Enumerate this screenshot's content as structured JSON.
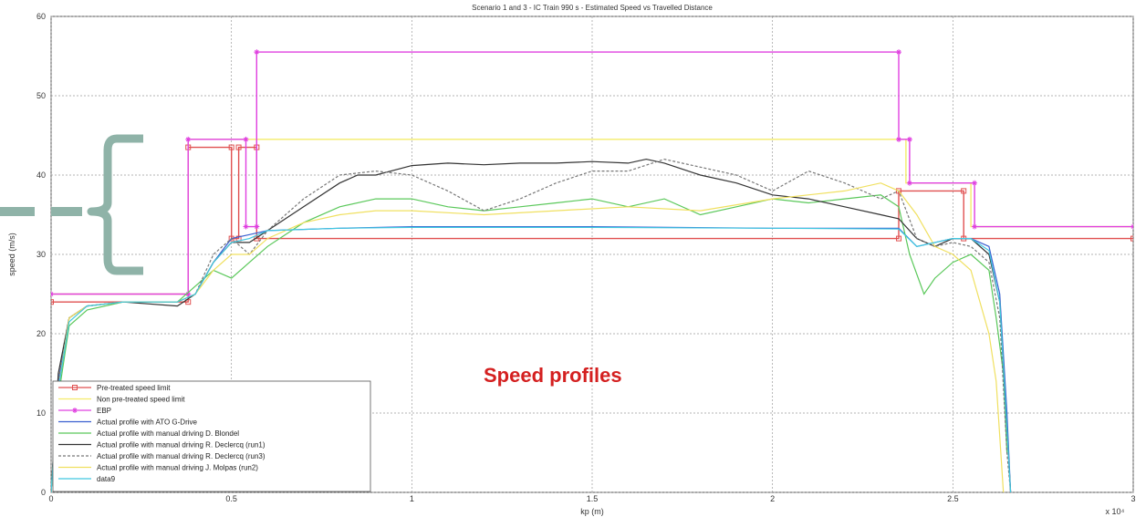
{
  "chart_data": {
    "type": "line",
    "title": "Scenario 1 and 3 - IC Train 990 s - Estimated Speed vs Travelled Distance",
    "xlabel": "kp (m)",
    "ylabel": "speed (m/s)",
    "x_exponent_label": "x 10⁴",
    "xlim": [
      0,
      3
    ],
    "ylim": [
      0,
      60
    ],
    "x_ticks": [
      "0",
      "0.5",
      "1",
      "1.5",
      "2",
      "2.5",
      "3"
    ],
    "y_ticks": [
      "0",
      "10",
      "20",
      "30",
      "40",
      "50",
      "60"
    ],
    "grid": true,
    "legend_position": "lower-left",
    "annotation": "Speed profiles",
    "series": [
      {
        "name": "Pre-treated speed limit",
        "color": "#e05050",
        "style": "step",
        "marker": "square",
        "x": [
          0,
          0.38,
          0.38,
          0.5,
          0.5,
          0.52,
          0.52,
          0.57,
          0.57,
          2.35,
          2.35,
          2.53,
          2.53,
          3.0
        ],
        "y": [
          24,
          24,
          43.5,
          43.5,
          32,
          32,
          43.5,
          43.5,
          32,
          32,
          38,
          38,
          32,
          32
        ]
      },
      {
        "name": "Non pre-treated speed limit",
        "color": "#f4ec6a",
        "style": "step",
        "marker": "none",
        "x": [
          0,
          0.38,
          0.38,
          0.52,
          0.52,
          2.37,
          2.37,
          2.55,
          2.55,
          3.0
        ],
        "y": [
          25,
          25,
          44.5,
          44.5,
          44.5,
          44.5,
          39,
          39,
          33.5,
          33.5
        ]
      },
      {
        "name": "EBP",
        "color": "#e040e0",
        "style": "step",
        "marker": "star",
        "x": [
          0,
          0.38,
          0.38,
          0.54,
          0.54,
          0.57,
          0.57,
          2.35,
          2.35,
          2.38,
          2.38,
          2.56,
          2.56,
          3.0
        ],
        "y": [
          25,
          25,
          44.5,
          44.5,
          33.5,
          33.5,
          55.5,
          55.5,
          44.5,
          44.5,
          39,
          39,
          33.5,
          33.5
        ]
      },
      {
        "name": "Actual profile with ATO G-Drive",
        "color": "#3a5fd0",
        "style": "line",
        "marker": "none",
        "x": [
          0,
          0.02,
          0.05,
          0.1,
          0.2,
          0.35,
          0.4,
          0.45,
          0.5,
          0.55,
          0.6,
          0.8,
          1.0,
          1.5,
          2.0,
          2.35,
          2.4,
          2.45,
          2.5,
          2.55,
          2.6,
          2.63,
          2.65,
          2.66
        ],
        "y": [
          0,
          14,
          22,
          23.5,
          24,
          24,
          25,
          29,
          32,
          32.5,
          33,
          33.3,
          33.5,
          33.5,
          33.3,
          33.3,
          31,
          31.5,
          32,
          32,
          31,
          25,
          10,
          0
        ]
      },
      {
        "name": "Actual profile with manual driving D. Blondel",
        "color": "#5ac85a",
        "style": "line",
        "marker": "none",
        "x": [
          0,
          0.02,
          0.05,
          0.1,
          0.2,
          0.35,
          0.4,
          0.45,
          0.5,
          0.55,
          0.6,
          0.7,
          0.8,
          0.9,
          1.0,
          1.1,
          1.2,
          1.3,
          1.4,
          1.5,
          1.6,
          1.7,
          1.8,
          1.9,
          2.0,
          2.1,
          2.2,
          2.3,
          2.35,
          2.38,
          2.42,
          2.45,
          2.5,
          2.55,
          2.6,
          2.62,
          2.64,
          2.65
        ],
        "y": [
          0,
          12,
          21,
          23,
          24,
          24,
          26,
          28,
          27,
          29,
          31,
          34,
          36,
          37,
          37,
          36,
          35.5,
          36,
          36.5,
          37,
          36,
          37,
          35,
          36,
          37,
          36.5,
          37,
          37.5,
          36,
          30,
          25,
          27,
          29,
          30,
          28,
          22,
          15,
          5
        ]
      },
      {
        "name": "Actual profile with manual driving R. Declercq (run1)",
        "color": "#333333",
        "style": "line",
        "marker": "none",
        "x": [
          0,
          0.02,
          0.05,
          0.1,
          0.2,
          0.35,
          0.4,
          0.45,
          0.5,
          0.55,
          0.6,
          0.7,
          0.8,
          0.85,
          0.9,
          1.0,
          1.1,
          1.2,
          1.3,
          1.4,
          1.5,
          1.6,
          1.65,
          1.7,
          1.8,
          1.9,
          2.0,
          2.1,
          2.2,
          2.3,
          2.35,
          2.4,
          2.45,
          2.5,
          2.55,
          2.6,
          2.63,
          2.65,
          2.66
        ],
        "y": [
          0,
          15,
          22,
          23.5,
          24,
          23.5,
          25,
          29,
          31.5,
          31.5,
          33,
          36,
          39,
          40,
          40,
          41.2,
          41.5,
          41.3,
          41.5,
          41.5,
          41.7,
          41.5,
          42,
          41.5,
          40,
          39,
          37.5,
          37,
          36,
          35,
          34.5,
          32,
          31,
          32,
          32,
          30,
          24,
          8,
          0
        ]
      },
      {
        "name": "Actual profile with manual driving R. Declercq (run3)",
        "color": "#777777",
        "style": "dashed",
        "marker": "none",
        "x": [
          0,
          0.02,
          0.05,
          0.1,
          0.2,
          0.35,
          0.4,
          0.45,
          0.5,
          0.55,
          0.6,
          0.7,
          0.8,
          0.9,
          1.0,
          1.1,
          1.2,
          1.3,
          1.4,
          1.5,
          1.6,
          1.7,
          1.8,
          1.9,
          2.0,
          2.1,
          2.2,
          2.3,
          2.35,
          2.4,
          2.45,
          2.5,
          2.55,
          2.6,
          2.63,
          2.65,
          2.66
        ],
        "y": [
          0,
          14,
          22,
          23.5,
          24,
          24,
          25,
          30,
          32,
          30,
          33,
          37,
          40,
          40.5,
          40,
          38,
          35.5,
          37,
          39,
          40.5,
          40.5,
          42,
          41,
          40,
          38,
          40.5,
          39,
          37,
          38,
          32,
          31,
          31.5,
          31,
          29,
          22,
          5,
          0
        ]
      },
      {
        "name": "Actual profile with manual driving J. Molpas (run2)",
        "color": "#f0e060",
        "style": "line",
        "marker": "none",
        "x": [
          0,
          0.02,
          0.05,
          0.1,
          0.2,
          0.35,
          0.4,
          0.45,
          0.5,
          0.55,
          0.6,
          0.7,
          0.8,
          0.9,
          1.0,
          1.2,
          1.4,
          1.6,
          1.8,
          2.0,
          2.2,
          2.3,
          2.35,
          2.4,
          2.45,
          2.5,
          2.55,
          2.6,
          2.62,
          2.64
        ],
        "y": [
          0,
          13,
          22,
          23.5,
          24,
          24,
          25,
          28,
          30,
          30,
          32,
          34,
          35,
          35.5,
          35.5,
          35,
          35.5,
          36,
          35.5,
          37,
          38,
          39,
          38,
          35,
          31,
          30,
          28,
          20,
          14,
          0
        ]
      },
      {
        "name": "data9",
        "color": "#40c8e0",
        "style": "line",
        "marker": "none",
        "x": [
          0,
          0.02,
          0.05,
          0.1,
          0.2,
          0.35,
          0.4,
          0.45,
          0.5,
          0.55,
          0.6,
          0.8,
          1.0,
          1.5,
          2.0,
          2.35,
          2.4,
          2.5,
          2.55,
          2.6,
          2.63,
          2.65,
          2.66
        ],
        "y": [
          0,
          13,
          21.5,
          23.5,
          24,
          24,
          25,
          29,
          31.5,
          32,
          33,
          33.3,
          33.4,
          33.4,
          33.3,
          33.2,
          31,
          32,
          32,
          30.5,
          24,
          8,
          0
        ]
      }
    ]
  }
}
